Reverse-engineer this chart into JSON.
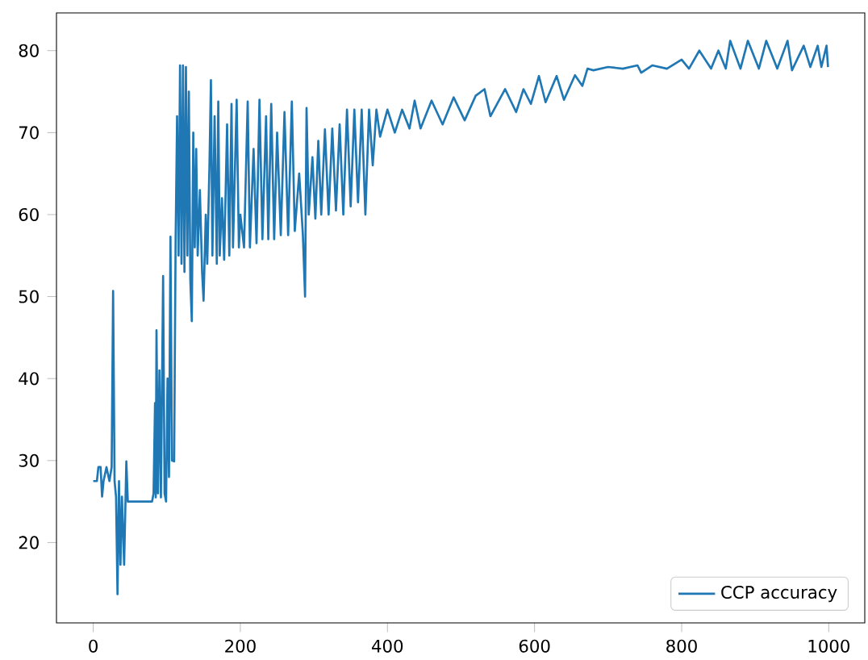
{
  "chart_data": {
    "type": "line",
    "xlim": [
      -50,
      1049
    ],
    "ylim": [
      10.2,
      84.6
    ],
    "xticks": [
      0,
      200,
      400,
      600,
      800,
      1000
    ],
    "yticks": [
      20,
      30,
      40,
      50,
      60,
      70,
      80
    ],
    "legend": "bottom right",
    "grid": false,
    "series": [
      {
        "name": "CCP accuracy",
        "color": "#1f77b4",
        "x": [
          0,
          5,
          7,
          10,
          12,
          14,
          18,
          22,
          25,
          27,
          29,
          31,
          33,
          35,
          37,
          39,
          42,
          45,
          47,
          80,
          82,
          84,
          85,
          86,
          88,
          90,
          92,
          95,
          97,
          99,
          101,
          103,
          105,
          107,
          110,
          112,
          114,
          116,
          118,
          120,
          122,
          124,
          126,
          128,
          130,
          132,
          134,
          136,
          138,
          140,
          142,
          145,
          148,
          150,
          153,
          155,
          158,
          160,
          162,
          165,
          168,
          170,
          172,
          175,
          178,
          182,
          185,
          188,
          190,
          195,
          198,
          200,
          205,
          210,
          213,
          218,
          222,
          226,
          230,
          235,
          238,
          242,
          246,
          250,
          255,
          260,
          265,
          270,
          274,
          280,
          285,
          288,
          290,
          293,
          298,
          302,
          306,
          310,
          315,
          320,
          325,
          330,
          335,
          340,
          345,
          350,
          355,
          360,
          365,
          370,
          375,
          380,
          385,
          390,
          400,
          410,
          420,
          430,
          437,
          445,
          460,
          475,
          490,
          505,
          520,
          532,
          540,
          560,
          575,
          585,
          595,
          606,
          615,
          630,
          640,
          655,
          665,
          672,
          680,
          700,
          720,
          740,
          745,
          760,
          780,
          800,
          810,
          824,
          840,
          850,
          860,
          866,
          880,
          890,
          905,
          915,
          930,
          944,
          950,
          966,
          975,
          985,
          990,
          997,
          999
        ],
        "values": [
          27.5,
          27.5,
          29.2,
          29.2,
          25.6,
          27.5,
          29.2,
          27.5,
          29.2,
          50.7,
          27.5,
          25.6,
          13.7,
          27.5,
          17.3,
          25.6,
          17.3,
          29.9,
          25,
          25,
          26,
          37,
          25.5,
          45.9,
          26,
          41,
          25.5,
          52.5,
          26,
          25,
          40,
          28,
          57.3,
          30,
          29.9,
          57,
          72,
          55,
          78.2,
          54,
          78.2,
          53,
          78,
          55,
          75,
          52,
          47,
          70,
          56,
          68,
          55,
          63,
          53,
          49.5,
          60,
          54,
          66,
          76.4,
          55,
          72,
          54,
          73.8,
          55,
          62,
          54.5,
          71,
          55,
          73.5,
          56,
          74,
          56,
          60,
          56,
          73.8,
          56,
          68,
          56.5,
          74,
          57,
          72,
          57,
          73.5,
          57,
          70,
          57.5,
          72.5,
          57.5,
          73.8,
          58,
          65,
          57.6,
          50,
          73,
          60,
          67,
          59.5,
          69,
          60,
          70.4,
          60,
          70.5,
          60.5,
          71,
          60,
          72.8,
          61,
          72.8,
          61.5,
          72.8,
          60,
          72.8,
          66,
          72.8,
          69.5,
          72.8,
          70,
          72.8,
          70.5,
          73.9,
          70.5,
          73.9,
          71,
          74.3,
          71.5,
          74.5,
          75.3,
          72,
          75.3,
          72.5,
          75.3,
          73.5,
          76.9,
          73.7,
          76.9,
          74,
          77,
          75.7,
          77.8,
          77.6,
          78,
          77.8,
          78.2,
          77.3,
          78.2,
          77.8,
          78.9,
          77.8,
          80,
          77.8,
          80,
          77.8,
          81.2,
          77.8,
          81.2,
          77.8,
          81.2,
          77.8,
          81.2,
          77.6,
          80.6,
          78,
          80.6,
          78,
          80.6,
          78
        ]
      }
    ]
  }
}
